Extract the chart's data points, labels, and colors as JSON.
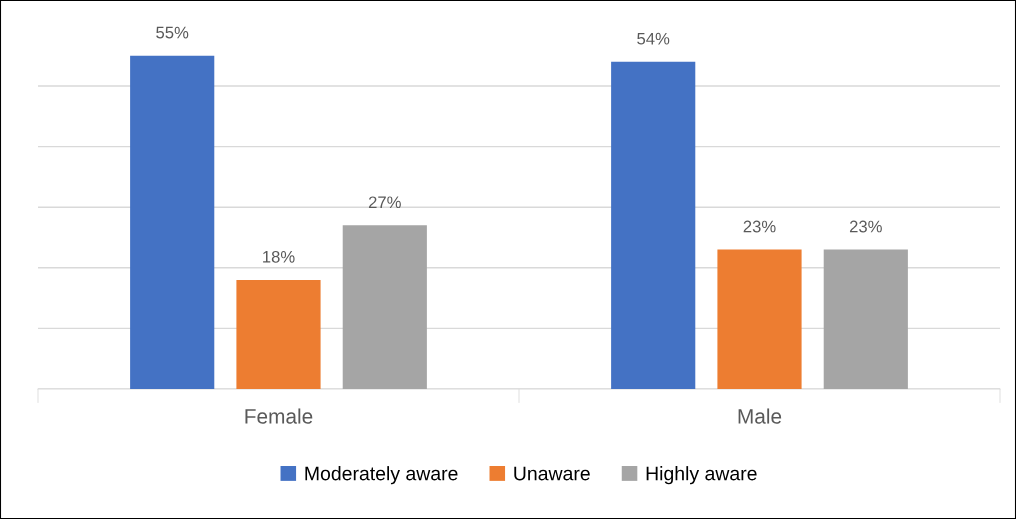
{
  "chart_data": {
    "type": "bar",
    "categories": [
      "Female",
      "Male"
    ],
    "series": [
      {
        "name": "Moderately aware",
        "color": "#4472c4",
        "values": [
          55,
          54
        ],
        "value_labels": [
          "55%",
          "54%"
        ]
      },
      {
        "name": "Unaware",
        "color": "#ed7d31",
        "values": [
          18,
          23
        ],
        "value_labels": [
          "18%",
          "23%"
        ]
      },
      {
        "name": "Highly aware",
        "color": "#a5a5a5",
        "values": [
          27,
          23
        ],
        "value_labels": [
          "27%",
          "23%"
        ]
      }
    ],
    "tick_labels": "x",
    "grid": "y",
    "legend": "bottom"
  }
}
